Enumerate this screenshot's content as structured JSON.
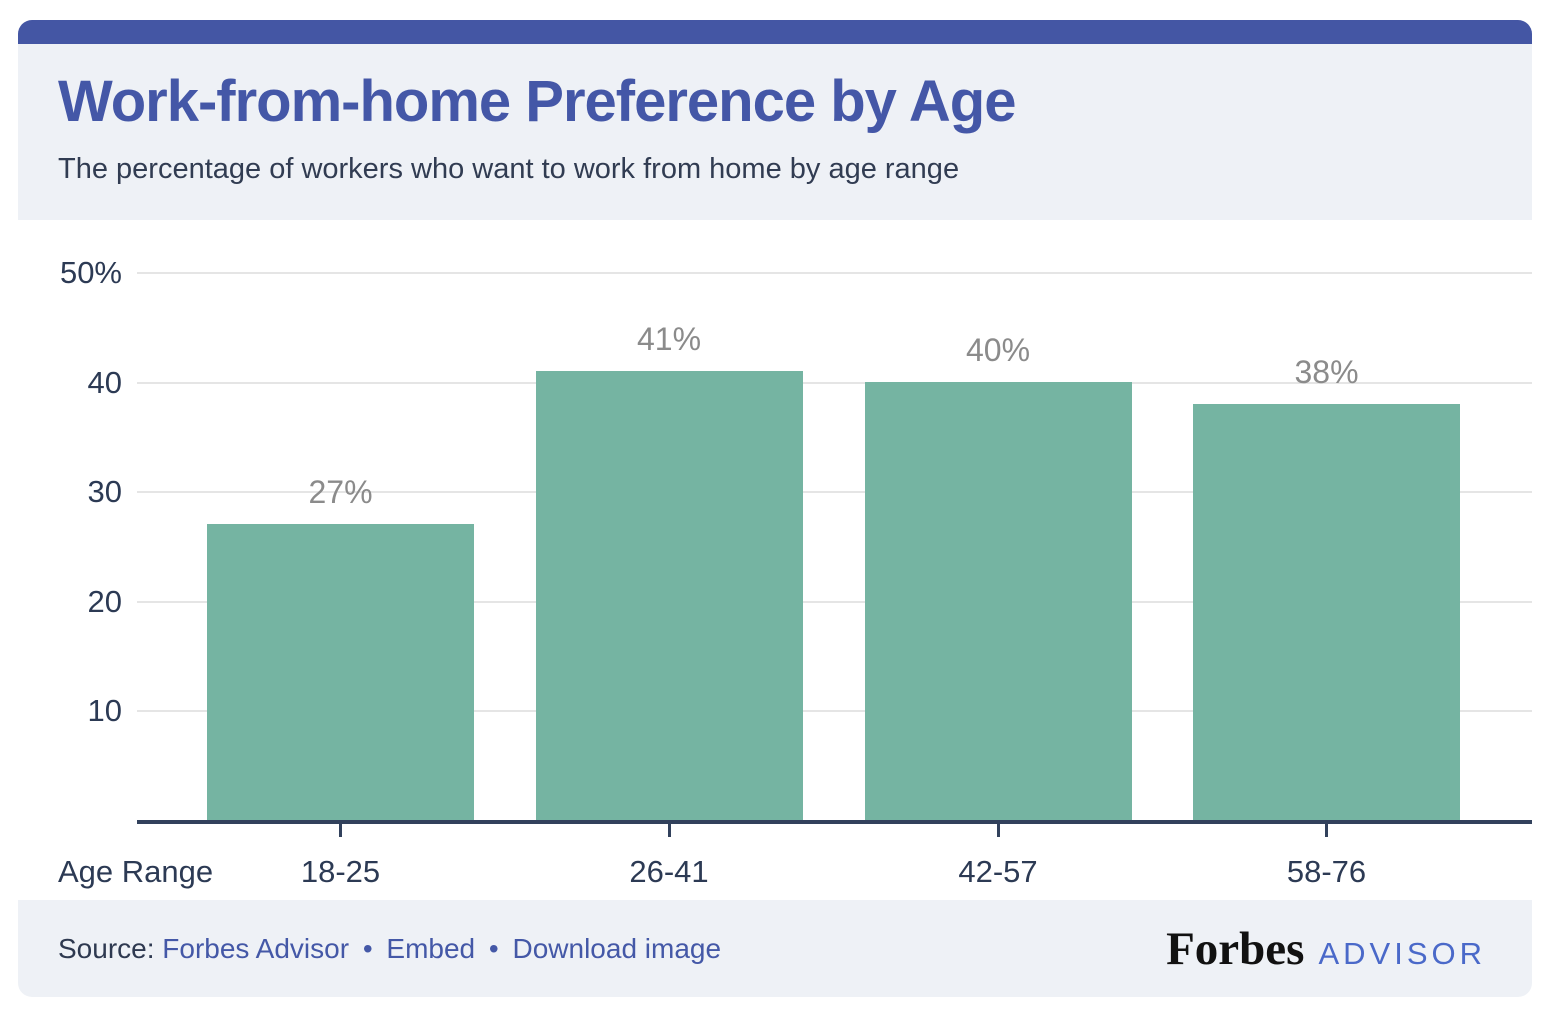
{
  "header": {
    "title": "Work-from-home Preference by Age",
    "subtitle": "The percentage of workers who want to work from home by age range"
  },
  "chart_data": {
    "type": "bar",
    "title": "Work-from-home Preference by Age",
    "subtitle": "The percentage of workers who want to work from home by age range",
    "categories": [
      "18-25",
      "26-41",
      "42-57",
      "58-76"
    ],
    "values": [
      27,
      41,
      40,
      38
    ],
    "value_labels": [
      "27%",
      "41%",
      "40%",
      "38%"
    ],
    "xlabel": "Age Range",
    "ylabel": "",
    "ylim": [
      0,
      50
    ],
    "yticks": [
      {
        "value": 50,
        "label": "50%"
      },
      {
        "value": 40,
        "label": "40"
      },
      {
        "value": 30,
        "label": "30"
      },
      {
        "value": 20,
        "label": "20"
      },
      {
        "value": 10,
        "label": "10"
      }
    ],
    "grid": true,
    "legend": false,
    "bar_color": "#75b4a2",
    "value_label_color": "#8b8b8b",
    "axis_color": "#32415c",
    "gridline_color": "#e5e5e5"
  },
  "footer": {
    "source_label": "Source:",
    "links": [
      "Forbes Advisor",
      "Embed",
      "Download image"
    ],
    "separator": "•",
    "brand": {
      "forbes": "Forbes",
      "advisor": "ADVISOR"
    }
  },
  "colors": {
    "accent_bar": "#4456a4",
    "title": "#4457a7",
    "section_background": "#eef1f6",
    "dark_text": "#2c3a54",
    "bar": "#75b4a2",
    "link": "#4458a7",
    "advisor_logo": "#4a69c9"
  }
}
